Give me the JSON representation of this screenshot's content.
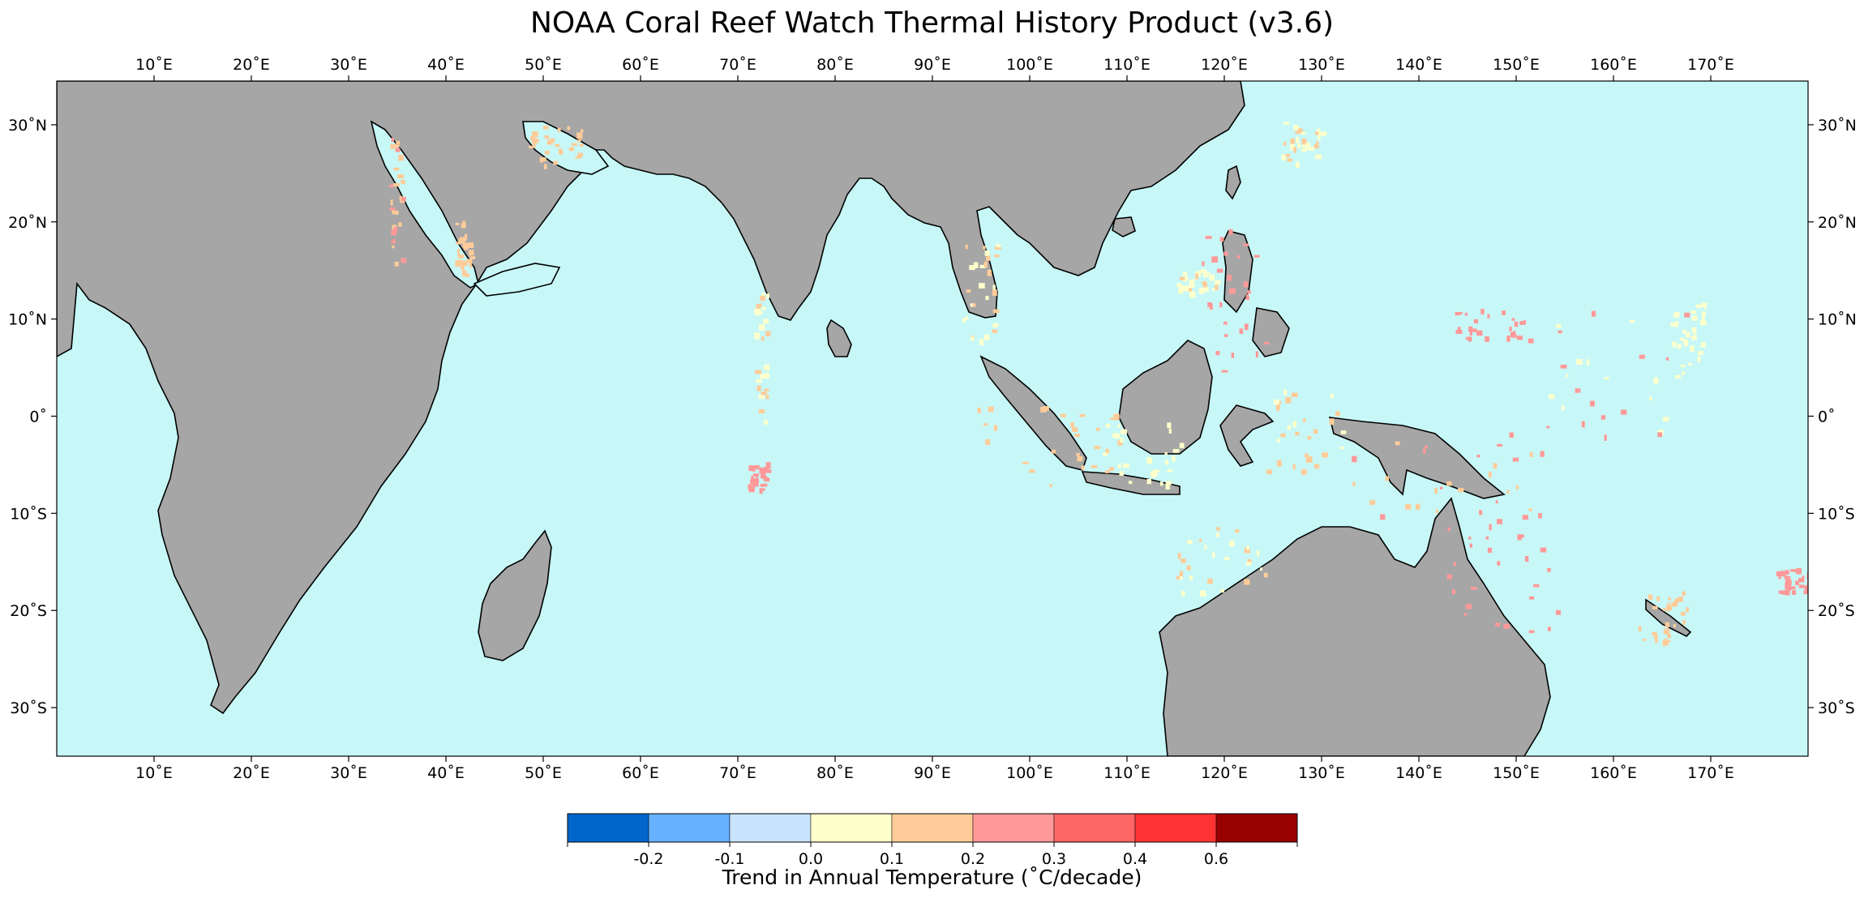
{
  "title": "NOAA Coral Reef Watch Thermal History Product (v3.6)",
  "map": {
    "lon_range": [
      0,
      180
    ],
    "lat_range": [
      -35,
      34.5
    ],
    "ocean_color": "#c7f8f7",
    "land_color": "#a6a6a6",
    "coast_color": "#000000",
    "lon_ticks": [
      10,
      20,
      30,
      40,
      50,
      60,
      70,
      80,
      90,
      100,
      110,
      120,
      130,
      140,
      150,
      160,
      170
    ],
    "lon_labels": [
      "10˚E",
      "20˚E",
      "30˚E",
      "40˚E",
      "50˚E",
      "60˚E",
      "70˚E",
      "80˚E",
      "90˚E",
      "100˚E",
      "110˚E",
      "120˚E",
      "130˚E",
      "140˚E",
      "150˚E",
      "160˚E",
      "170˚E"
    ],
    "lat_ticks": [
      30,
      20,
      10,
      0,
      -10,
      -20,
      -30
    ],
    "lat_labels": [
      "30˚N",
      "20˚N",
      "10˚N",
      "0˚",
      "10˚S",
      "20˚S",
      "30˚S"
    ]
  },
  "colorbar": {
    "title": "Trend in Annual Temperature (˚C/decade)",
    "colors": [
      "#0066cc",
      "#66b0ff",
      "#c8e4ff",
      "#ffffcc",
      "#ffcc99",
      "#ff9999",
      "#ff6666",
      "#ff3333",
      "#990000"
    ],
    "tick_labels": [
      "",
      "-0.2",
      "-0.1",
      "0.0",
      "0.1",
      "0.2",
      "0.3",
      "0.4",
      "0.6",
      ""
    ]
  }
}
